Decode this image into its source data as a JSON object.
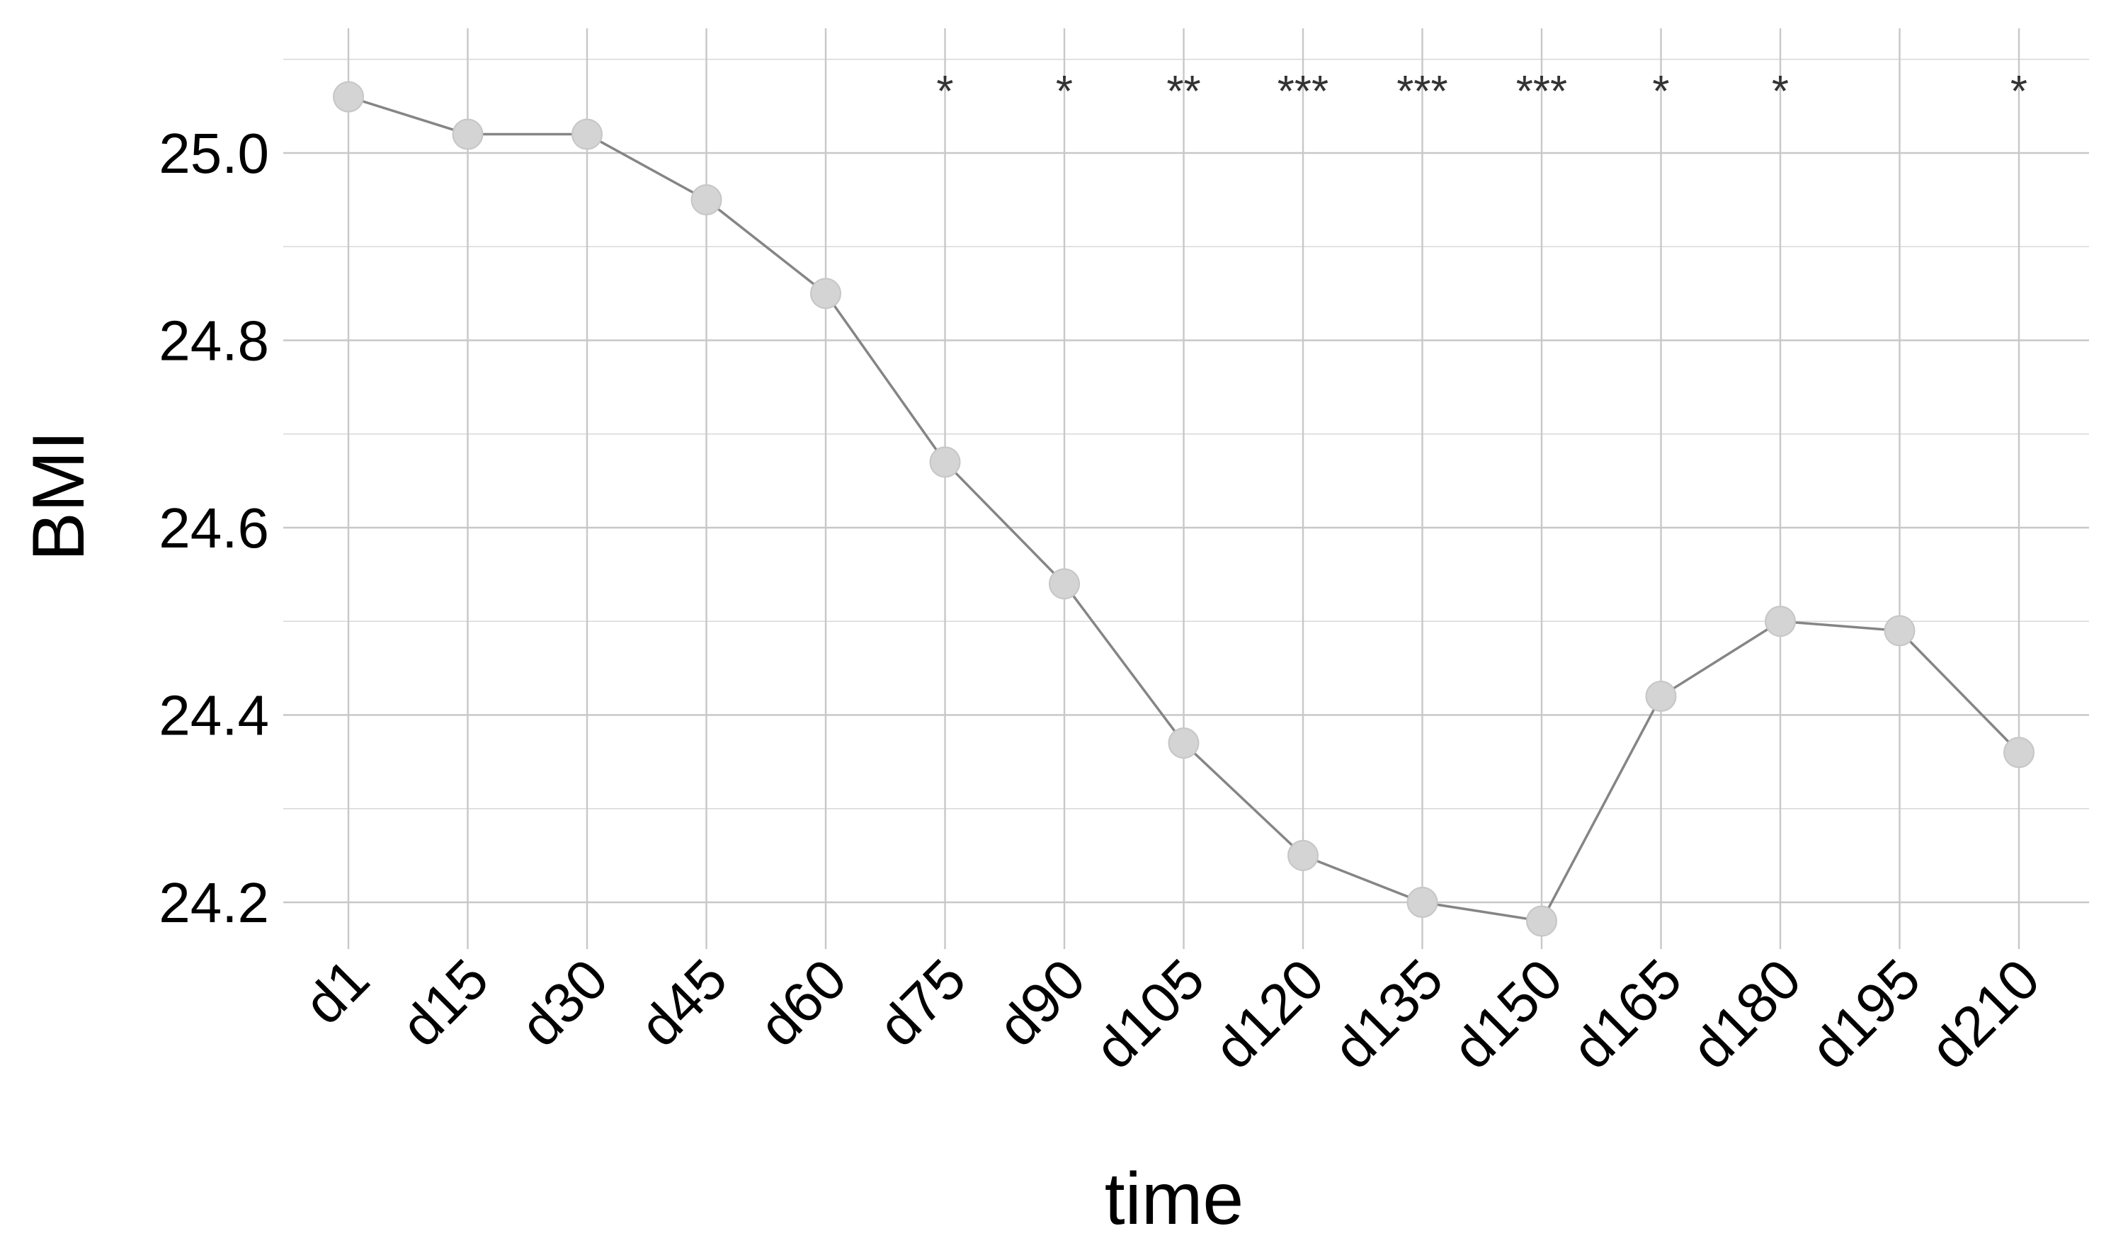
{
  "chart_data": {
    "type": "line",
    "xlabel": "time",
    "ylabel": "BMI",
    "categories": [
      "d1",
      "d15",
      "d30",
      "d45",
      "d60",
      "d75",
      "d90",
      "d105",
      "d120",
      "d135",
      "d150",
      "d165",
      "d180",
      "d195",
      "d210"
    ],
    "series": [
      {
        "values": [
          25.06,
          25.02,
          25.02,
          24.95,
          24.85,
          24.67,
          24.54,
          24.37,
          24.25,
          24.2,
          24.18,
          24.42,
          24.5,
          24.49,
          24.36
        ]
      }
    ],
    "significance": [
      "",
      "",
      "",
      "",
      "",
      "*",
      "*",
      "**",
      "***",
      "***",
      "***",
      "*",
      "*",
      "",
      "*"
    ],
    "y_ticks": [
      "24.2",
      "24.4",
      "24.6",
      "24.8",
      "25.0"
    ],
    "ylim": [
      24.15,
      25.1
    ],
    "grid": true,
    "legend": "none",
    "colors": {
      "line": "#858585",
      "point": "#d4d4d4",
      "grid": "#c8c8c8",
      "significance_text": "#333333"
    }
  }
}
